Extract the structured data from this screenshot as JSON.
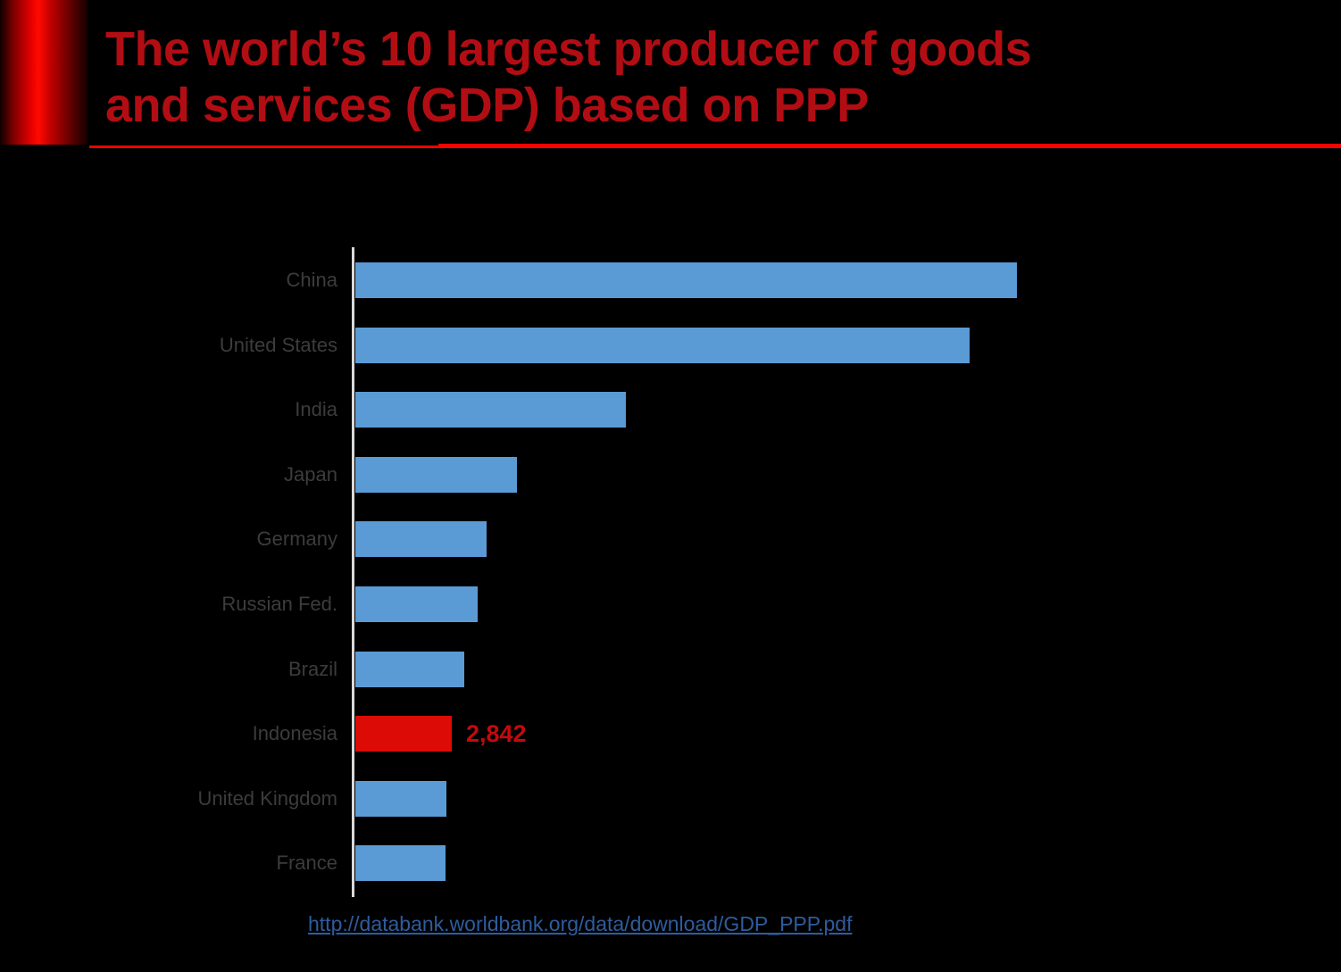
{
  "title": {
    "line1": "The world’s 10 largest producer of goods",
    "line2": "and services (GDP) based on PPP"
  },
  "source_link": {
    "text": "http://databank.worldbank.org/data/download/GDP_PPP.pdf"
  },
  "colors": {
    "background": "#000000",
    "title_red": "#b30d14",
    "divider_red": "#f10400",
    "bar_blue": "#5b9bd5",
    "highlight_red": "#dd0b06",
    "value_label_red": "#c4090e",
    "axis_gray": "#d9d9d9",
    "label_gray": "#3c3c3c",
    "link_blue": "#2e5c9e"
  },
  "chart_data": {
    "type": "bar",
    "orientation": "horizontal",
    "title": "",
    "xlabel": "",
    "ylabel": "",
    "categories": [
      "China",
      "United States",
      "India",
      "Japan",
      "Germany",
      "Russian Fed.",
      "Brazil",
      "Indonesia",
      "United Kingdom",
      "France"
    ],
    "values": [
      19500,
      18100,
      7970,
      4760,
      3870,
      3600,
      3210,
      2842,
      2680,
      2660
    ],
    "labeled_values": {
      "Indonesia": "2,842"
    },
    "highlight_category": "Indonesia",
    "xlim": [
      0,
      20000
    ],
    "grid": false,
    "legend": false,
    "axis_ticks_visible": false
  }
}
